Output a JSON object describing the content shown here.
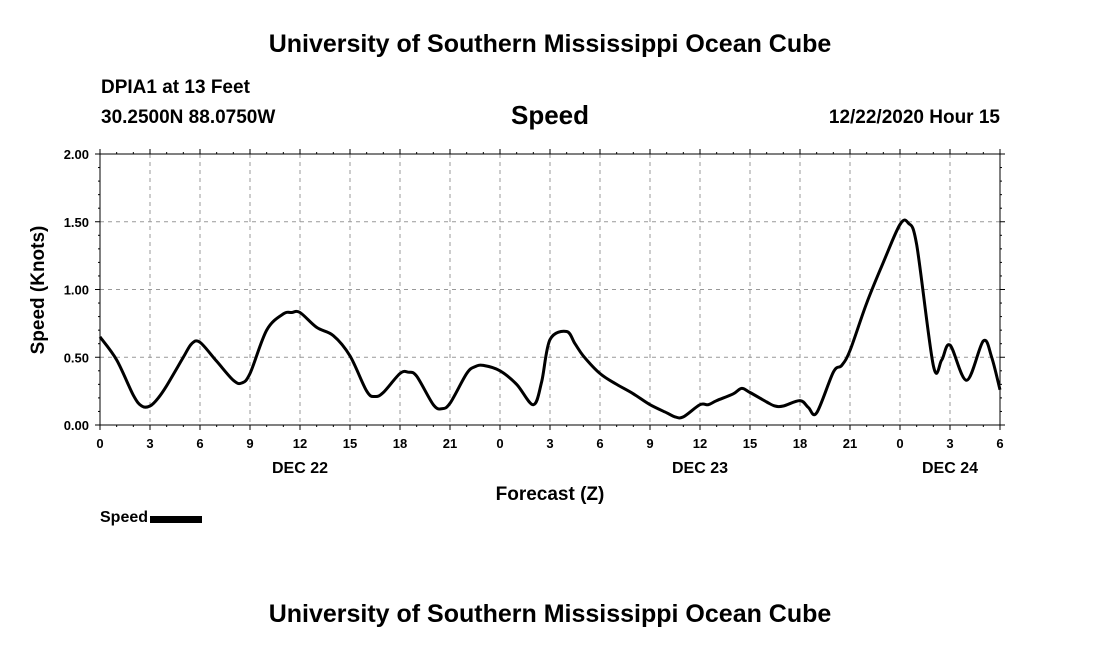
{
  "header": {
    "title_top": "University of Southern Mississippi Ocean Cube",
    "title_bottom": "University of Southern Mississippi Ocean Cube",
    "station_line1": "DPIA1 at 13 Feet",
    "station_line2": "30.2500N 88.0750W",
    "timestamp": "12/22/2020 Hour 15"
  },
  "chart_data": {
    "type": "line",
    "title": "Speed",
    "xlabel": "Forecast (Z)",
    "ylabel": "Speed (Knots)",
    "ylim": [
      0,
      2.0
    ],
    "y_ticks": [
      "0.00",
      "0.50",
      "1.00",
      "1.50",
      "2.00"
    ],
    "xlim_hours": [
      0,
      54
    ],
    "x_tick_labels": [
      "0",
      "3",
      "6",
      "9",
      "12",
      "15",
      "18",
      "21",
      "0",
      "3",
      "6",
      "9",
      "12",
      "15",
      "18",
      "21",
      "0",
      "3",
      "6"
    ],
    "date_labels": [
      {
        "text": "DEC 22",
        "hour": 12
      },
      {
        "text": "DEC 23",
        "hour": 36
      },
      {
        "text": "DEC 24",
        "hour": 51
      }
    ],
    "grid": true,
    "legend": "bottom-left",
    "series": [
      {
        "name": "Speed",
        "x_hours": [
          0,
          1,
          2,
          2.5,
          3,
          3.5,
          4,
          5,
          5.5,
          6,
          7,
          8,
          8.5,
          9,
          10,
          11,
          11.5,
          12,
          13,
          14,
          15,
          16,
          16.5,
          17,
          18,
          18.5,
          19,
          20,
          20.5,
          21,
          22,
          22.5,
          23,
          24,
          25,
          26,
          26.5,
          27,
          28,
          28.5,
          29,
          30,
          31,
          32,
          33,
          34,
          34.5,
          35,
          36,
          36.5,
          37,
          38,
          38.5,
          39,
          40,
          40.5,
          41,
          42,
          42.5,
          43,
          44,
          44.5,
          45,
          46,
          47,
          48,
          48.5,
          49,
          50,
          50.5,
          51,
          52,
          53,
          53.5,
          54
        ],
        "values": [
          0.65,
          0.48,
          0.22,
          0.14,
          0.14,
          0.2,
          0.29,
          0.5,
          0.6,
          0.61,
          0.47,
          0.33,
          0.31,
          0.38,
          0.7,
          0.82,
          0.83,
          0.83,
          0.72,
          0.66,
          0.51,
          0.25,
          0.21,
          0.24,
          0.38,
          0.39,
          0.36,
          0.15,
          0.12,
          0.16,
          0.38,
          0.43,
          0.44,
          0.4,
          0.3,
          0.15,
          0.32,
          0.63,
          0.69,
          0.6,
          0.51,
          0.38,
          0.3,
          0.23,
          0.15,
          0.09,
          0.06,
          0.06,
          0.15,
          0.15,
          0.18,
          0.23,
          0.27,
          0.24,
          0.17,
          0.14,
          0.14,
          0.18,
          0.13,
          0.09,
          0.39,
          0.44,
          0.55,
          0.9,
          1.2,
          1.48,
          1.49,
          1.33,
          0.44,
          0.48,
          0.59,
          0.33,
          0.62,
          0.5,
          0.26
        ]
      }
    ]
  }
}
